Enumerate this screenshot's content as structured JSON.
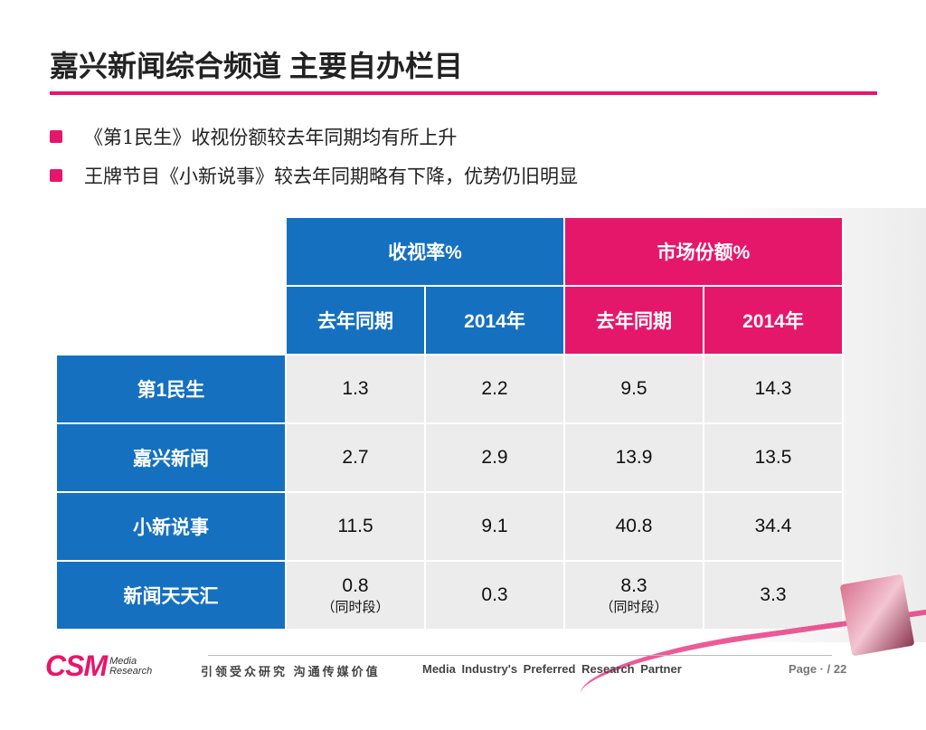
{
  "title": "嘉兴新闻综合频道 主要自办栏目",
  "bullets": [
    "《第1民生》收视份额较去年同期均有所上升",
    "王牌节目《小新说事》较去年同期略有下降，优势仍旧明显"
  ],
  "table": {
    "group_headers": [
      "收视率%",
      "市场份额%"
    ],
    "sub_headers": [
      "去年同期",
      "2014年",
      "去年同期",
      "2014年"
    ],
    "rows": [
      {
        "name": "第1民生",
        "values": [
          "1.3",
          "2.2",
          "9.5",
          "14.3"
        ]
      },
      {
        "name": "嘉兴新闻",
        "values": [
          "2.7",
          "2.9",
          "13.9",
          "13.5"
        ]
      },
      {
        "name": "小新说事",
        "values": [
          "11.5",
          "9.1",
          "40.8",
          "34.4"
        ]
      },
      {
        "name": "新闻天天汇",
        "values": [
          "0.8",
          "0.3",
          "8.3",
          "3.3"
        ],
        "notes": [
          "（同时段）",
          "",
          "（同时段）",
          ""
        ]
      }
    ]
  },
  "footer": {
    "logo": "CSM",
    "logo_sub1": "Media",
    "logo_sub2": "Research",
    "slogan": "引领受众研究 沟通传媒价值",
    "tagline": "Media Industry's Preferred Research Partner",
    "page": "Page · / 22"
  },
  "colors": {
    "accent": "#e5176b",
    "blue": "#1570c0"
  }
}
